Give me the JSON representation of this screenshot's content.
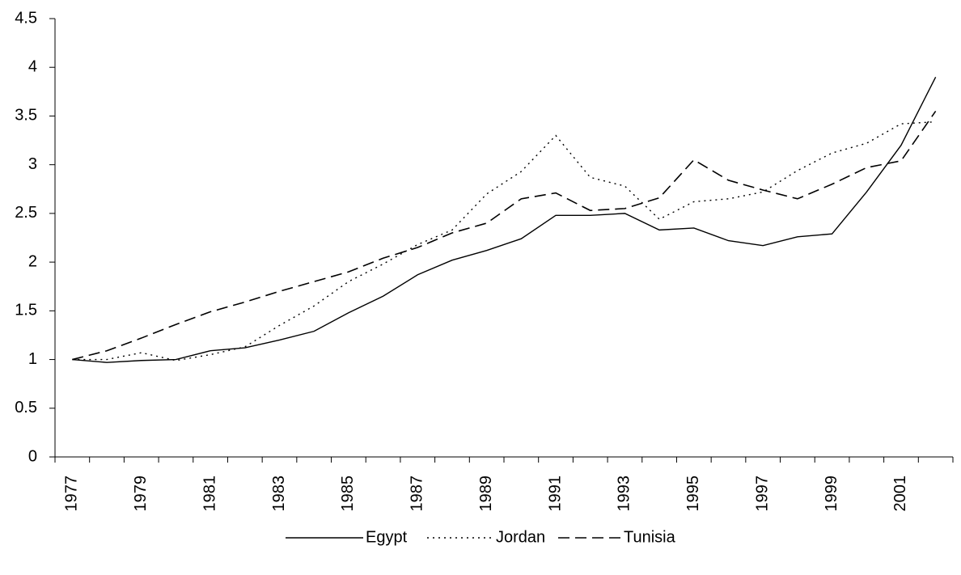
{
  "chart_data": {
    "type": "line",
    "categories": [
      "1977",
      null,
      "1979",
      null,
      "1981",
      null,
      "1983",
      null,
      "1985",
      null,
      "1987",
      null,
      "1989",
      null,
      "1991",
      null,
      "1993",
      null,
      "1995",
      null,
      "1997",
      null,
      "1999",
      null,
      "2001",
      null
    ],
    "series": [
      {
        "name": "Egypt",
        "color": "#000000",
        "dash": "solid",
        "values": [
          1.0,
          0.97,
          0.99,
          1.0,
          1.09,
          1.12,
          1.2,
          1.29,
          1.48,
          1.65,
          1.87,
          2.02,
          2.12,
          2.24,
          2.48,
          2.48,
          2.5,
          2.33,
          2.35,
          2.22,
          2.17,
          2.26,
          2.29,
          2.72,
          3.2,
          3.9
        ]
      },
      {
        "name": "Jordan",
        "color": "#000000",
        "dash": "dotted",
        "values": [
          1.0,
          1.0,
          1.07,
          0.99,
          1.05,
          1.13,
          1.35,
          1.55,
          1.8,
          1.98,
          2.18,
          2.33,
          2.7,
          2.93,
          3.3,
          2.87,
          2.78,
          2.44,
          2.62,
          2.65,
          2.72,
          2.94,
          3.12,
          3.22,
          3.42,
          3.44
        ]
      },
      {
        "name": "Tunisia",
        "color": "#000000",
        "dash": "dashed",
        "values": [
          1.0,
          1.09,
          1.22,
          1.36,
          1.49,
          1.59,
          1.7,
          1.8,
          1.9,
          2.04,
          2.15,
          2.3,
          2.4,
          2.65,
          2.71,
          2.53,
          2.55,
          2.66,
          3.05,
          2.84,
          2.74,
          2.65,
          2.8,
          2.97,
          3.04,
          3.55
        ]
      }
    ],
    "ylim": [
      0,
      4.5
    ],
    "yticks": [
      0,
      0.5,
      1,
      1.5,
      2,
      2.5,
      3,
      3.5,
      4,
      4.5
    ],
    "grid": false,
    "legend": "bottom"
  }
}
